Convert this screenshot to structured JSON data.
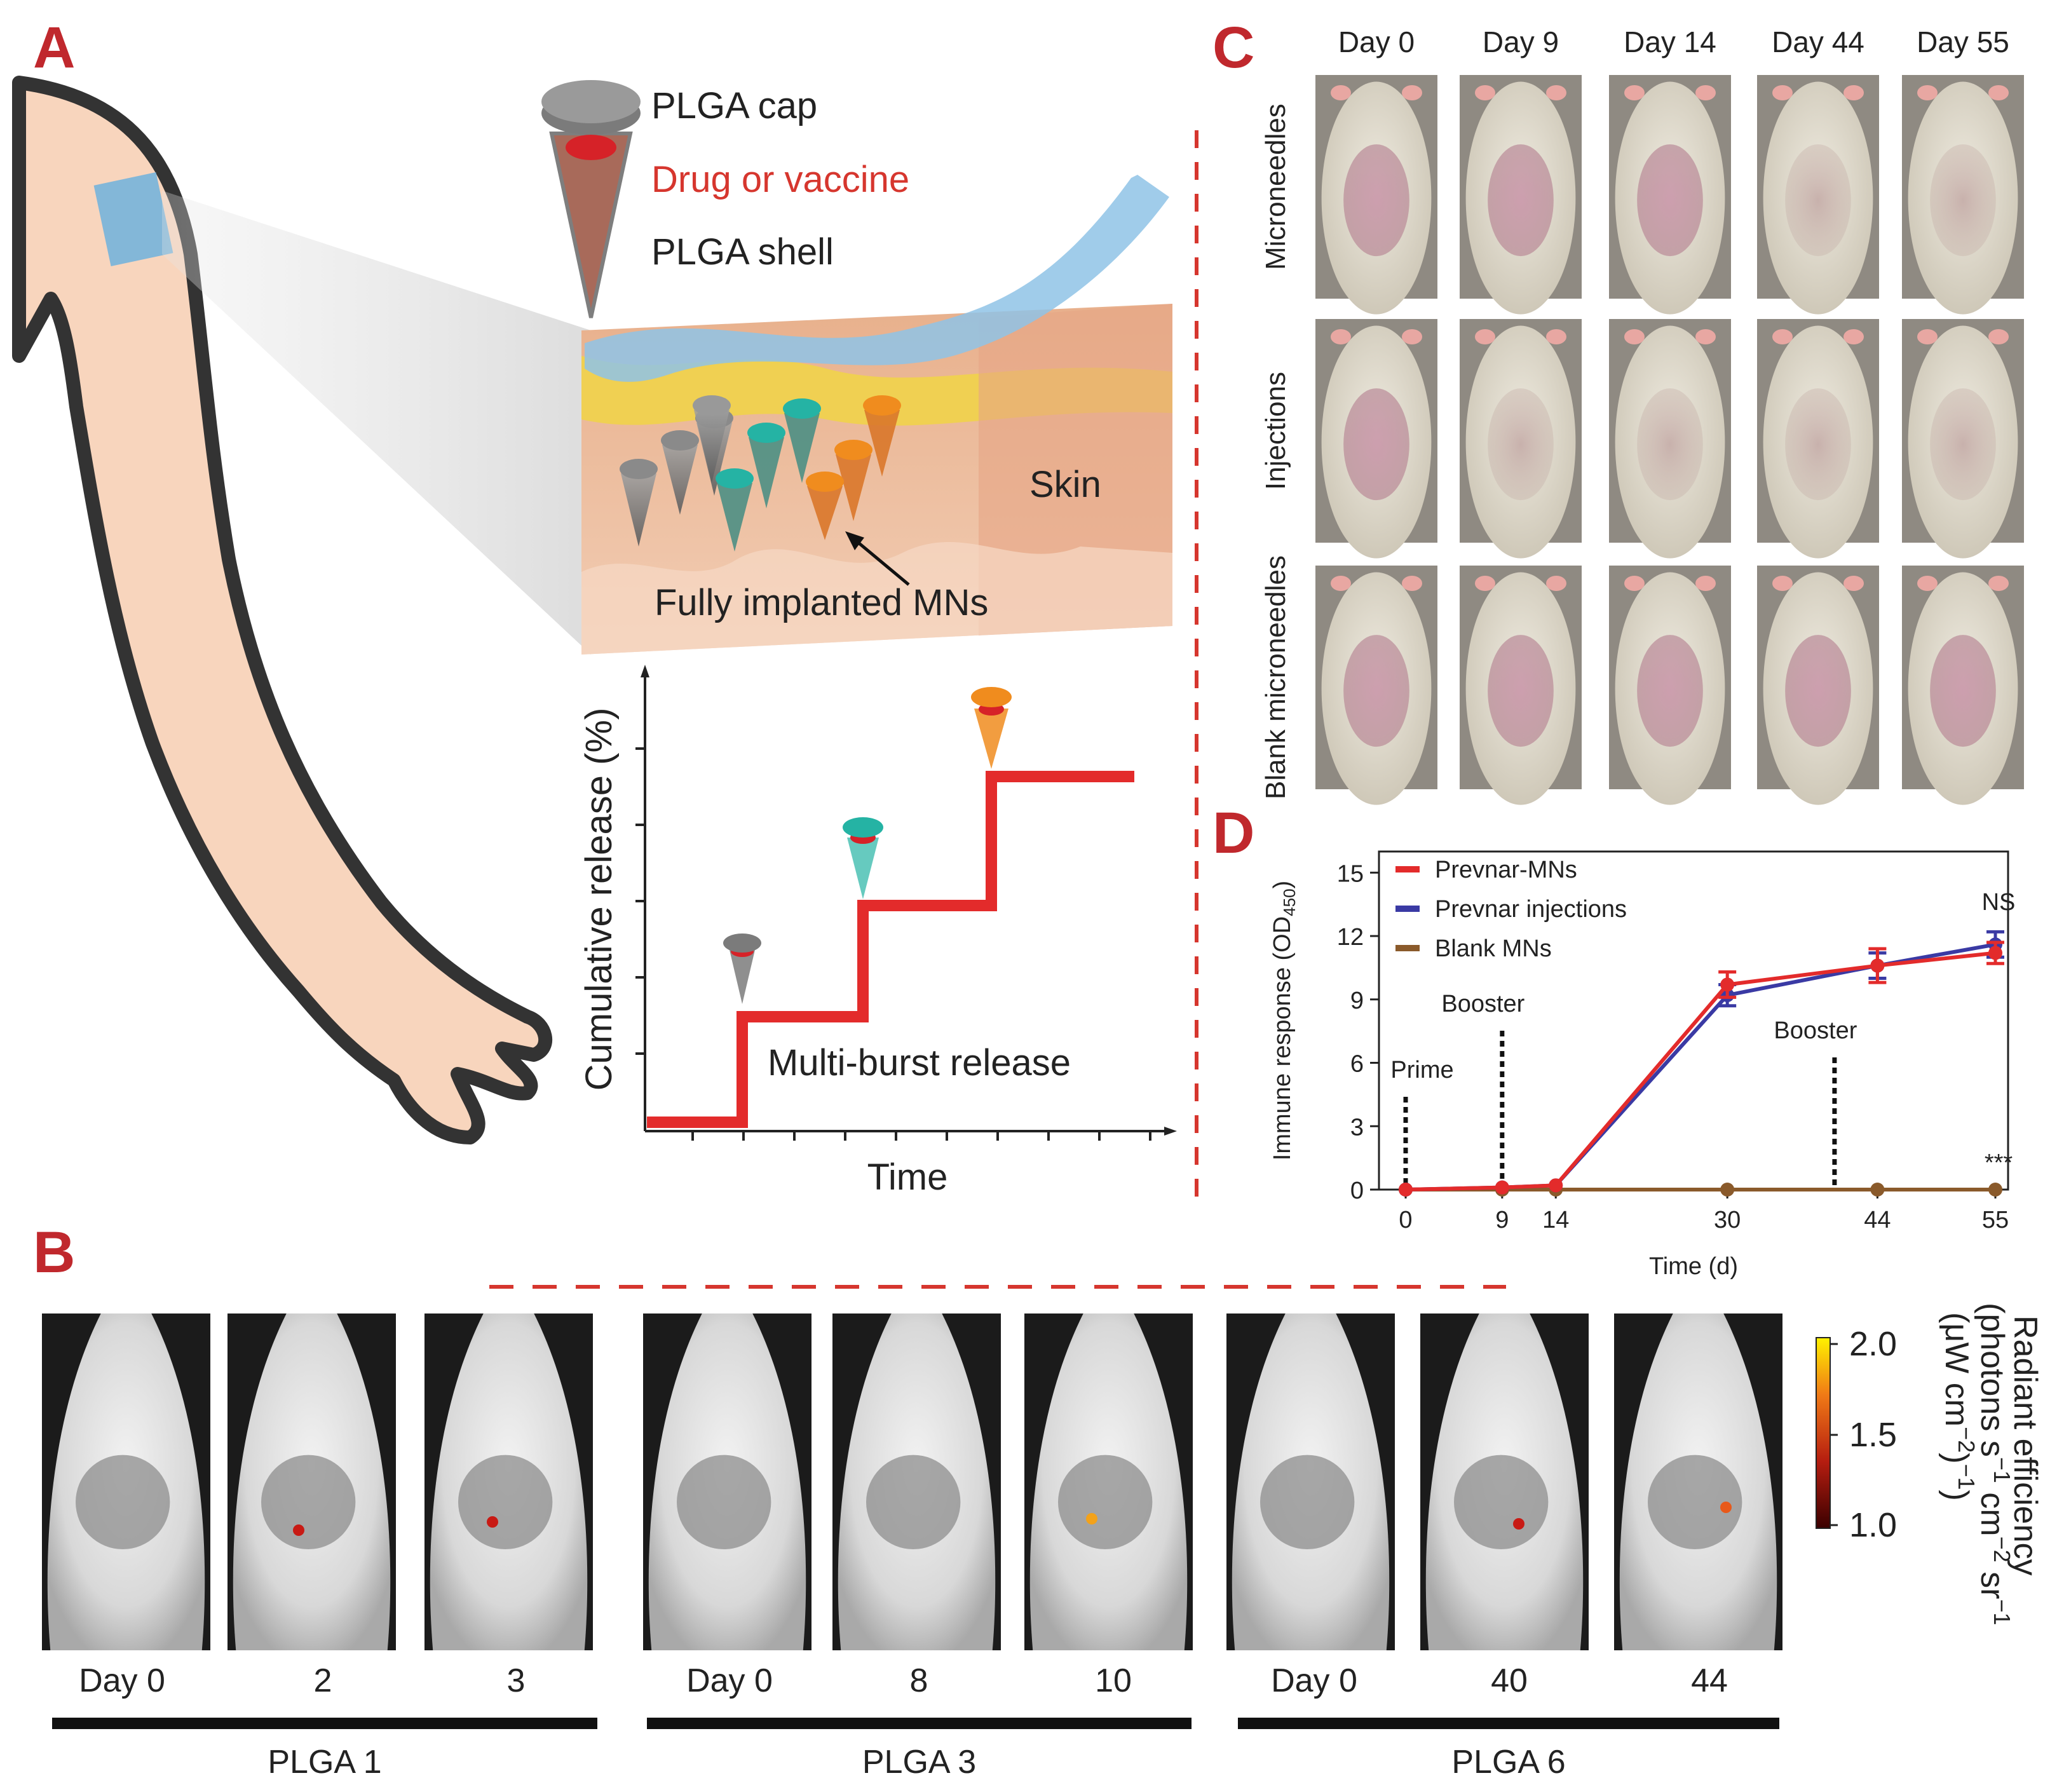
{
  "panel_letters": {
    "a": "A",
    "b": "B",
    "c": "C",
    "d": "D"
  },
  "panel_a": {
    "legend": {
      "cap": "PLGA cap",
      "payload": "Drug or vaccine",
      "shell": "PLGA shell"
    },
    "skin_label": "Skin",
    "implant_label": "Fully implanted MNs",
    "release_plot": {
      "ylabel": "Cumulative release (%)",
      "xlabel": "Time",
      "annotation": "Multi-burst release",
      "cone_colors": {
        "first": "#7b7b7b",
        "second": "#25b3a4",
        "third": "#f08c1e"
      }
    }
  },
  "panel_b": {
    "groups": [
      {
        "label": "PLGA 1",
        "days": [
          "Day 0",
          "2",
          "3"
        ]
      },
      {
        "label": "PLGA 3",
        "days": [
          "Day 0",
          "8",
          "10"
        ]
      },
      {
        "label": "PLGA 6",
        "days": [
          "Day 0",
          "40",
          "44"
        ]
      }
    ],
    "colorbar": {
      "title": "Radiant efficiency",
      "unit_line1": "(photons s",
      "unit_line2": "(μW cm",
      "ticks": [
        "2.0",
        "1.5",
        "1.0"
      ]
    }
  },
  "panel_c": {
    "days": [
      "Day 0",
      "Day 9",
      "Day 14",
      "Day 44",
      "Day 55"
    ],
    "rows": [
      "Microneedles",
      "Injections",
      "Blank microneedles"
    ]
  },
  "chart_data": {
    "type": "line",
    "xlabel": "Time (d)",
    "ylabel": "Immune response (OD450)",
    "x": [
      0,
      9,
      14,
      30,
      44,
      55
    ],
    "x_ticks": [
      "0",
      "9",
      "14",
      "30",
      "44",
      "55"
    ],
    "y_ticks": [
      "0",
      "3",
      "6",
      "9",
      "12",
      "15"
    ],
    "ylim": [
      0,
      16
    ],
    "xlim": [
      0,
      55
    ],
    "series": [
      {
        "name": "Prevnar-MNs",
        "color": "#e32b2b",
        "values": [
          0,
          0.1,
          0.2,
          9.7,
          10.6,
          11.2
        ],
        "errors": [
          0,
          0.1,
          0.2,
          0.6,
          0.8,
          0.5
        ]
      },
      {
        "name": "Prevnar injections",
        "color": "#3a3aa4",
        "values": [
          0,
          0.1,
          0.2,
          9.2,
          10.6,
          11.6
        ],
        "errors": [
          0,
          0.1,
          0.2,
          0.5,
          0.6,
          0.6
        ]
      },
      {
        "name": "Blank MNs",
        "color": "#8a5a2b",
        "values": [
          0,
          0,
          0,
          0,
          0,
          0
        ],
        "errors": [
          0,
          0,
          0,
          0,
          0,
          0
        ]
      }
    ],
    "markers": [
      {
        "label": "Prime",
        "x": 0
      },
      {
        "label": "Booster",
        "x": 9
      },
      {
        "label": "Booster",
        "x": 40
      }
    ],
    "annotations": {
      "ns": "NS",
      "significance": "***"
    },
    "legend_position": "top-left"
  }
}
